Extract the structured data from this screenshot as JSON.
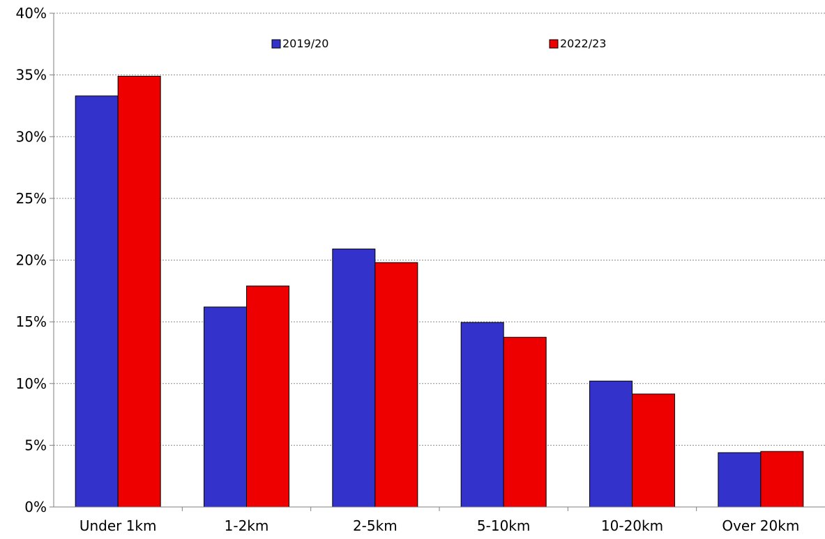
{
  "chart_data": {
    "type": "bar",
    "title": "",
    "xlabel": "",
    "ylabel": "",
    "categories": [
      "Under 1km",
      "1-2km",
      "2-5km",
      "5-10km",
      "10-20km",
      "Over 20km"
    ],
    "series": [
      {
        "name": "2019/20",
        "color": "#3333cc",
        "values": [
          33.3,
          16.2,
          20.9,
          14.95,
          10.2,
          4.4
        ]
      },
      {
        "name": "2022/23",
        "color": "#ee0000",
        "values": [
          34.9,
          17.9,
          19.8,
          13.75,
          9.15,
          4.5
        ]
      }
    ],
    "ylim": [
      0,
      40
    ],
    "yticks": [
      0,
      5,
      10,
      15,
      20,
      25,
      30,
      35,
      40
    ],
    "ytick_labels": [
      "0%",
      "5%",
      "10%",
      "15%",
      "20%",
      "25%",
      "30%",
      "35%",
      "40%"
    ],
    "grid": "horizontal dotted",
    "legend_position": "top"
  }
}
